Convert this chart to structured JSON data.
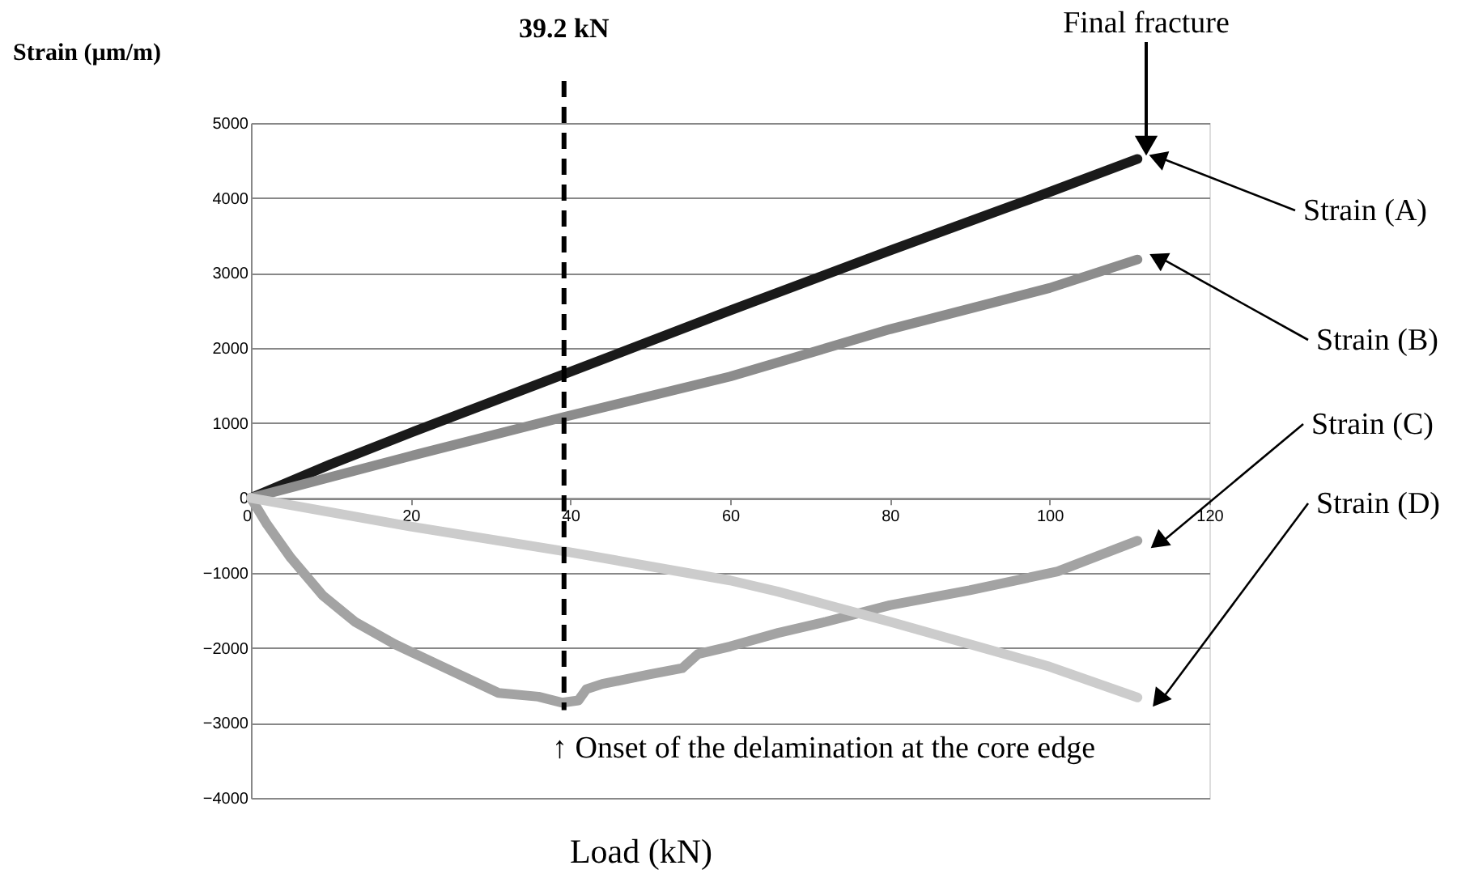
{
  "chart_data": {
    "type": "line",
    "xlabel": "Load (kN)",
    "ylabel": "Strain (µm/m)",
    "xlim": [
      0,
      120
    ],
    "xticks": [
      0,
      20,
      40,
      60,
      80,
      100,
      120
    ],
    "ylim": [
      -4000,
      5000
    ],
    "yticks": [
      -4000,
      -3000,
      -2000,
      -1000,
      0,
      1000,
      2000,
      3000,
      4000,
      5000
    ],
    "grid": "y",
    "marker": "none",
    "line_style": "solid",
    "series": [
      {
        "name": "Strain (A)",
        "color": "#1a1a1a",
        "x": [
          0,
          10,
          20,
          39.2,
          60,
          80,
          100,
          111
        ],
        "values": [
          0,
          450,
          870,
          1650,
          2500,
          3300,
          4080,
          4520
        ]
      },
      {
        "name": "Strain (B)",
        "color": "#8c8c8c",
        "x": [
          0,
          20,
          39.2,
          60,
          80,
          100,
          111
        ],
        "values": [
          0,
          560,
          1080,
          1620,
          2250,
          2800,
          3180
        ]
      },
      {
        "name": "Strain (C)",
        "color": "#a3a3a3",
        "x": [
          0,
          2,
          5,
          9,
          13,
          18,
          24,
          31,
          36,
          39,
          41,
          42,
          44,
          50,
          54,
          56,
          60,
          66,
          72,
          80,
          90,
          101,
          111
        ],
        "values": [
          0,
          -350,
          -800,
          -1300,
          -1650,
          -1950,
          -2250,
          -2600,
          -2650,
          -2730,
          -2700,
          -2550,
          -2480,
          -2350,
          -2270,
          -2080,
          -1980,
          -1800,
          -1650,
          -1430,
          -1230,
          -980,
          -570
        ]
      },
      {
        "name": "Strain (D)",
        "color": "#cccccc",
        "x": [
          0,
          20,
          39.2,
          60,
          66,
          80,
          100,
          111
        ],
        "values": [
          0,
          -380,
          -710,
          -1100,
          -1250,
          -1650,
          -2250,
          -2660
        ]
      }
    ],
    "ref_lines": [
      {
        "axis": "x",
        "value": 39.2,
        "label": "39.2 kN",
        "color": "#000000",
        "line_style": "dashed"
      }
    ],
    "annotations": [
      "Final fracture",
      "↑ Onset of the delamination at the core edge"
    ]
  }
}
